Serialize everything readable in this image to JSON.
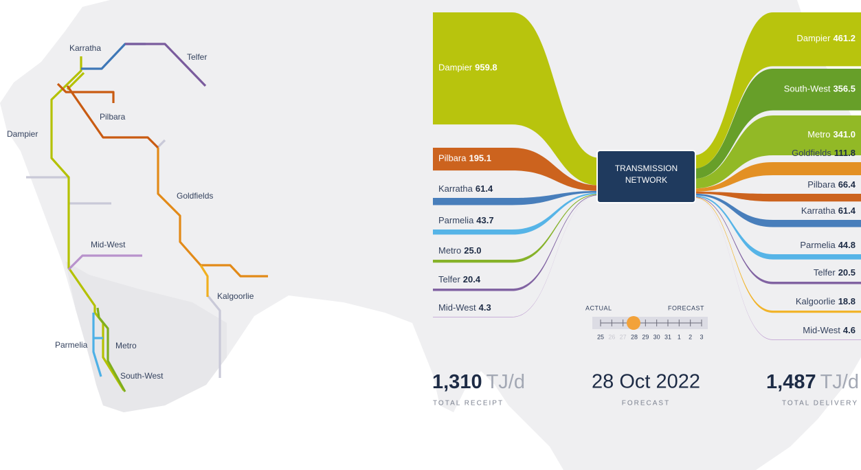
{
  "map": {
    "labels": [
      "Karratha",
      "Telfer",
      "Pilbara",
      "Dampier",
      "Goldfields",
      "Mid-West",
      "Kalgoorlie",
      "Parmelia",
      "Metro",
      "South-West"
    ]
  },
  "chart_data": {
    "type": "sankey",
    "center_label": [
      "TRANSMISSION",
      "NETWORK"
    ],
    "sources": {
      "names": [
        "Dampier",
        "Pilbara",
        "Karratha",
        "Parmelia",
        "Metro",
        "Telfer",
        "Mid-West"
      ],
      "values": [
        959.8,
        195.1,
        61.4,
        43.7,
        25.0,
        20.4,
        4.3
      ],
      "value_labels": [
        "959.8",
        "195.1",
        "61.4",
        "43.7",
        "25.0",
        "20.4",
        "4.3"
      ],
      "colors": [
        "#b4c100",
        "#c95b12",
        "#3e77b7",
        "#4db0e6",
        "#7fae1e",
        "#7a5b9d",
        "#b892cc"
      ]
    },
    "targets": {
      "names": [
        "Dampier",
        "South-West",
        "Metro",
        "Goldfields",
        "Pilbara",
        "Karratha",
        "Parmelia",
        "Telfer",
        "Kalgoorlie",
        "Mid-West"
      ],
      "values": [
        461.2,
        356.5,
        341.0,
        111.8,
        66.4,
        61.4,
        44.8,
        20.5,
        18.8,
        4.6
      ],
      "value_labels": [
        "461.2",
        "356.5",
        "341.0",
        "111.8",
        "66.4",
        "61.4",
        "44.8",
        "20.5",
        "18.8",
        "4.6"
      ],
      "colors": [
        "#b4c100",
        "#5f9a1e",
        "#8cb51a",
        "#e28a18",
        "#c95b12",
        "#3e77b7",
        "#4db0e6",
        "#7a5b9d",
        "#f0b020",
        "#b892cc"
      ]
    }
  },
  "summary": {
    "receipt": {
      "value": "1,310",
      "unit": "TJ/d",
      "caption": "TOTAL RECEIPT"
    },
    "date": {
      "value": "28 Oct 2022",
      "caption": "FORECAST"
    },
    "delivery": {
      "value": "1,487",
      "unit": "TJ/d",
      "caption": "TOTAL DELIVERY"
    }
  },
  "timeline": {
    "actual_label": "ACTUAL",
    "forecast_label": "FORECAST",
    "days": [
      "25",
      "26",
      "27",
      "28",
      "29",
      "30",
      "31",
      "1",
      "2",
      "3"
    ]
  }
}
